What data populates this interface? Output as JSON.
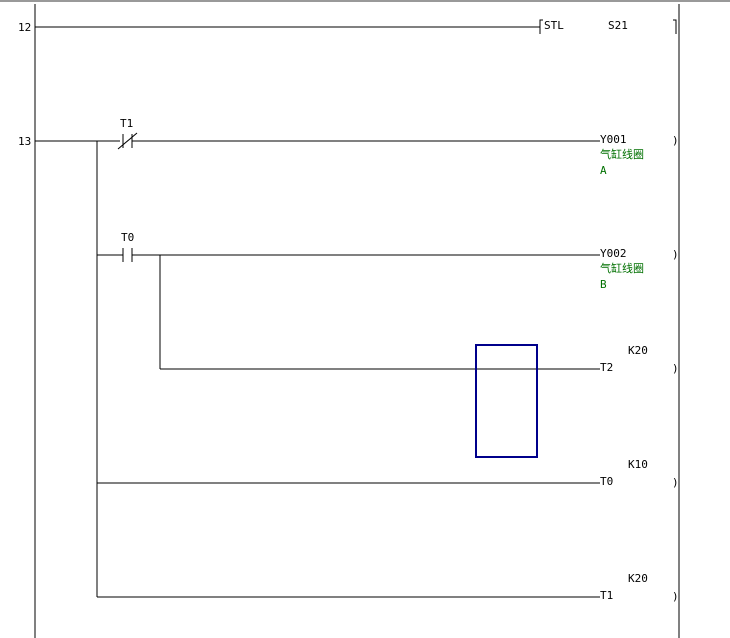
{
  "rungs": [
    {
      "step": "12",
      "instruction": "STL",
      "operand": "S21"
    },
    {
      "step": "13",
      "contacts": [
        {
          "device": "T1",
          "type": "normally-closed"
        },
        {
          "device": "T0",
          "type": "normally-open"
        }
      ],
      "coils": [
        {
          "device": "Y001",
          "comment_line1": "气缸线圈",
          "comment_line2": "A"
        },
        {
          "device": "Y002",
          "comment_line1": "气缸线圈",
          "comment_line2": "B"
        },
        {
          "device": "T2",
          "setting": "K20"
        },
        {
          "device": "T0",
          "setting": "K10"
        },
        {
          "device": "T1",
          "setting": "K20"
        }
      ]
    }
  ],
  "colors": {
    "comment": "#007000",
    "cursor": "#00008b",
    "line": "#000000"
  }
}
